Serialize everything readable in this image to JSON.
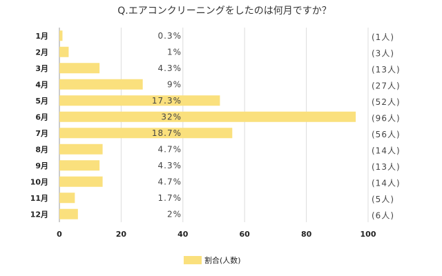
{
  "chart_data": {
    "type": "bar",
    "orientation": "horizontal",
    "title": "Q.エアコンクリーニングをしたのは何月ですか？",
    "categories": [
      "1月",
      "2月",
      "3月",
      "4月",
      "5月",
      "6月",
      "7月",
      "8月",
      "9月",
      "10月",
      "11月",
      "12月"
    ],
    "series": [
      {
        "name": "割合(人数)",
        "values": [
          1,
          3,
          13,
          27,
          52,
          96,
          56,
          14,
          13,
          14,
          5,
          6
        ],
        "color": "#FAE07D"
      }
    ],
    "percent_labels": [
      "0.3%",
      "1%",
      "4.3%",
      "9%",
      "17.3%",
      "32%",
      "18.7%",
      "4.7%",
      "4.3%",
      "4.7%",
      "1.7%",
      "2%"
    ],
    "count_labels": [
      "(1人)",
      "(3人)",
      "(13人)",
      "(27人)",
      "(52人)",
      "(96人)",
      "(56人)",
      "(14人)",
      "(13人)",
      "(14人)",
      "(5人)",
      "(6人)"
    ],
    "xlim": [
      0,
      100
    ],
    "xticks": [
      0,
      20,
      40,
      60,
      80,
      100
    ],
    "grid": true,
    "legend": "bottom"
  }
}
